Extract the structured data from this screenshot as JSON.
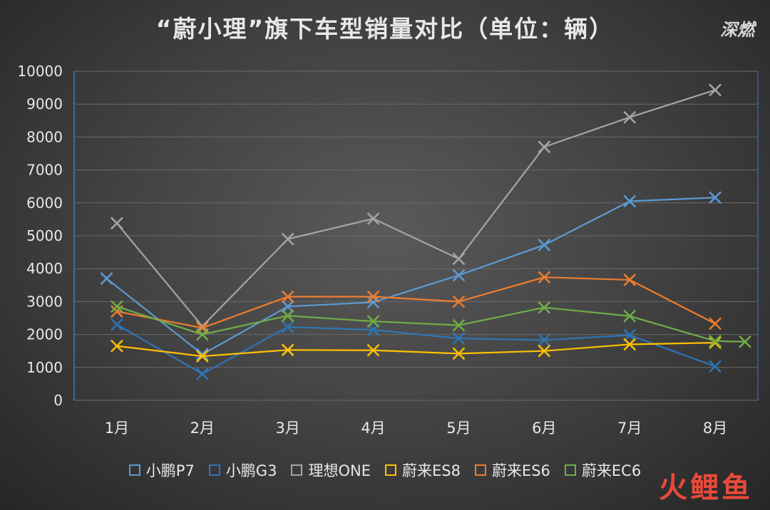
{
  "chart_data": {
    "type": "line",
    "title": "“蔚小理”旗下车型销量对比（单位：辆）",
    "categories": [
      "1月",
      "2月",
      "3月",
      "4月",
      "5月",
      "6月",
      "7月",
      "8月"
    ],
    "ylim": [
      0,
      10000
    ],
    "yticks": [
      0,
      1000,
      2000,
      3000,
      4000,
      5000,
      6000,
      7000,
      8000,
      9000,
      10000
    ],
    "grid": true,
    "legend_position": "bottom",
    "series": [
      {
        "name": "小鹏P7",
        "color": "#5b9bd5",
        "values": [
          null,
          1400,
          2850,
          2980,
          3800,
          4720,
          6050,
          6160
        ]
      },
      {
        "name": "小鹏G3",
        "color": "#2e75b6",
        "values": [
          2300,
          800,
          2230,
          2140,
          1880,
          1830,
          1980,
          1030
        ]
      },
      {
        "name": "理想ONE",
        "color": "#a5a5a5",
        "values": [
          5380,
          2250,
          4900,
          5520,
          4300,
          7700,
          8600,
          9430
        ]
      },
      {
        "name": "蔚来ES8",
        "color": "#ffc000",
        "values": [
          1650,
          1340,
          1530,
          1520,
          1420,
          1500,
          1700,
          1750
        ]
      },
      {
        "name": "蔚来ES6",
        "color": "#ed7d31",
        "values": [
          2700,
          2200,
          3150,
          3150,
          3000,
          3740,
          3660,
          2330
        ]
      },
      {
        "name": "蔚来EC6",
        "color": "#70ad47",
        "values": [
          2850,
          2000,
          2570,
          2400,
          2280,
          2820,
          2560,
          1800
        ]
      }
    ],
    "extra_points": [
      {
        "series": "小鹏P7",
        "x_index": -0.12,
        "value": 3700
      },
      {
        "series": "蔚来EC6",
        "x_index": 7.35,
        "value": 1780
      }
    ]
  },
  "logo_text": "深燃",
  "watermark_text": "火鲤鱼"
}
